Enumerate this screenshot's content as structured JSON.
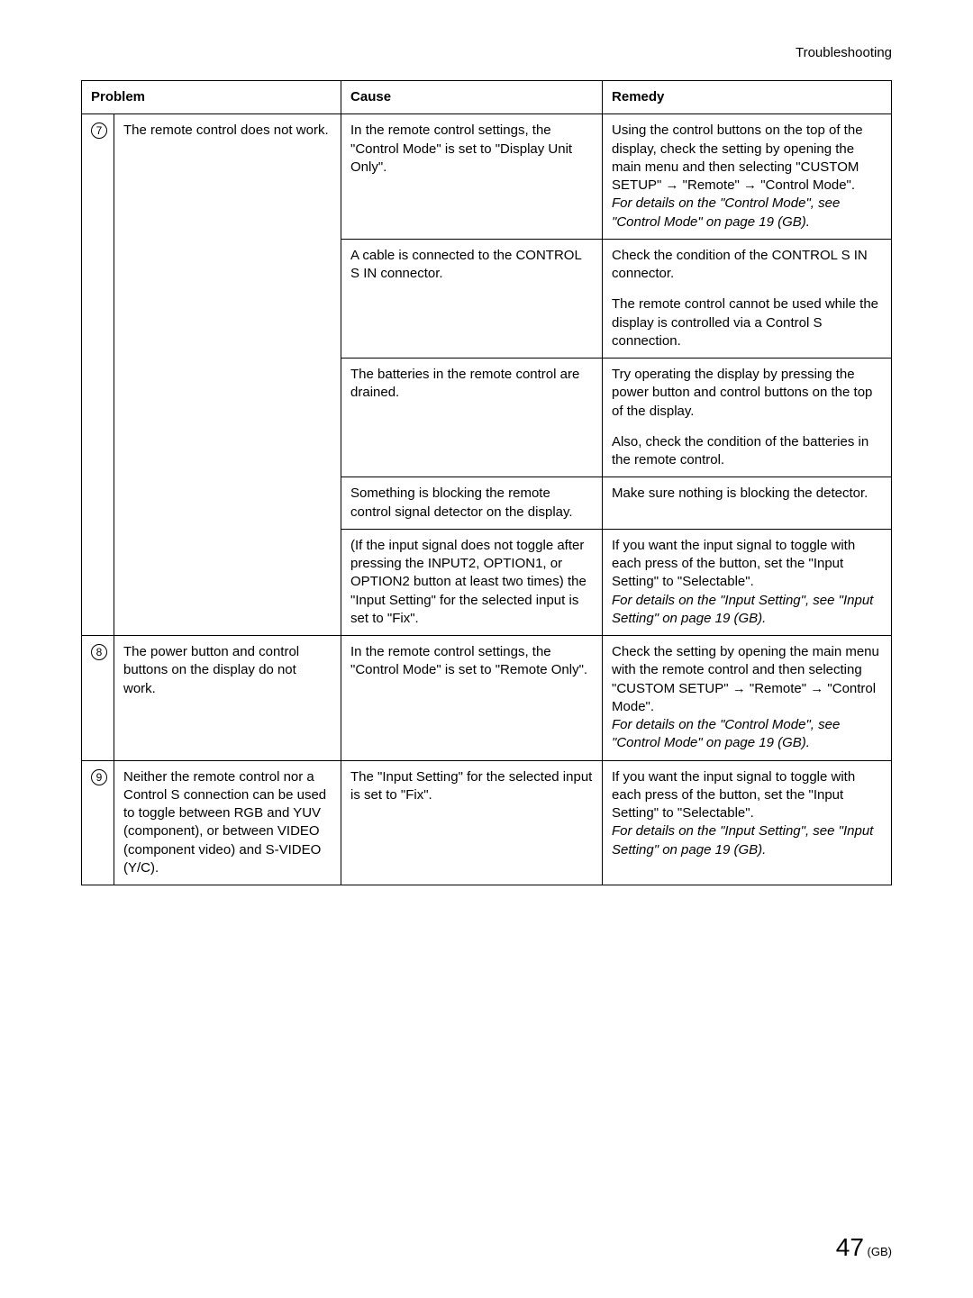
{
  "header": {
    "section": "Troubleshooting"
  },
  "columns": {
    "problem": "Problem",
    "cause": "Cause",
    "remedy": "Remedy"
  },
  "rows": [
    {
      "num": "7",
      "problem": "The remote control does not work.",
      "cells": [
        {
          "cause": "In the remote control settings, the \"Control Mode\" is set to \"Display Unit Only\".",
          "remedy": "Using the control buttons on the top of the display, check the setting by opening the main menu and then selecting \"CUSTOM SETUP\" → \"Remote\" → \"Control Mode\".",
          "remedy_note": "For details on the \"Control Mode\", see \"Control Mode\" on page 19 (GB)."
        },
        {
          "cause": "A cable is connected to the CONTROL S IN connector.",
          "remedy": "Check the condition of the CONTROL S IN connector.",
          "remedy2": "The remote control cannot be used while the display is controlled via a Control S connection."
        },
        {
          "cause": "The batteries in the remote control are drained.",
          "remedy": "Try operating the display by pressing the power button and control buttons on the top of the display.",
          "remedy2": "Also, check the condition of the batteries in the remote control."
        },
        {
          "cause": "Something is blocking the remote control signal detector on the display.",
          "remedy": "Make sure nothing is blocking the detector."
        },
        {
          "cause": "(If the input signal does not toggle after pressing the INPUT2, OPTION1, or OPTION2 button at least two times) the \"Input Setting\" for the selected input is set to \"Fix\".",
          "remedy": "If you want the input signal to toggle with each press of the button, set the \"Input Setting\" to \"Selectable\".",
          "remedy_note": "For details on the \"Input Setting\", see \"Input Setting\" on page 19 (GB)."
        }
      ]
    },
    {
      "num": "8",
      "problem": "The power button and control buttons on the display do not work.",
      "cells": [
        {
          "cause": "In the remote control settings, the \"Control Mode\" is set to \"Remote Only\".",
          "remedy": "Check the setting by opening the main menu with the remote control and then selecting \"CUSTOM SETUP\" → \"Remote\" → \"Control Mode\".",
          "remedy_note": "For details on the \"Control Mode\", see \"Control Mode\" on page 19 (GB)."
        }
      ]
    },
    {
      "num": "9",
      "problem": "Neither the remote control nor a Control S connection can be used to toggle between RGB and YUV (component), or between VIDEO (component video) and S-VIDEO (Y/C).",
      "cells": [
        {
          "cause": "The \"Input Setting\" for the selected input is set to \"Fix\".",
          "remedy": "If you want the input signal to toggle with each press of the button, set the \"Input Setting\" to \"Selectable\".",
          "remedy_note": "For details on the \"Input Setting\", see \"Input Setting\" on page 19 (GB)."
        }
      ]
    }
  ],
  "footer": {
    "page_number": "47",
    "page_suffix": " (GB)"
  }
}
